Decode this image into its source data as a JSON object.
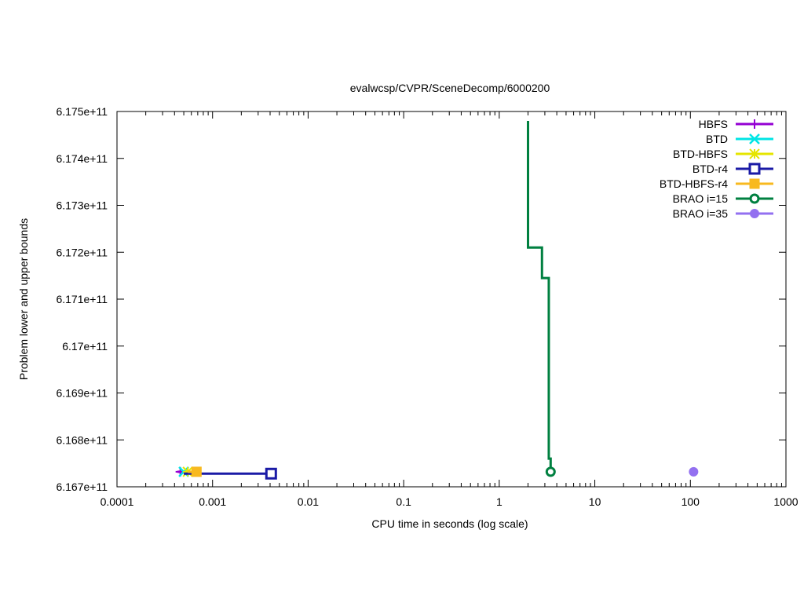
{
  "chart_data": {
    "type": "line",
    "title": "evalwcsp/CVPR/SceneDecomp/6000200",
    "xlabel": "CPU time in seconds (log scale)",
    "ylabel": "Problem lower and upper bounds",
    "x_scale": "log",
    "xlim": [
      0.0001,
      1000
    ],
    "ylim": [
      616700000000,
      617500000000
    ],
    "x_ticks": [
      {
        "value": 0.0001,
        "label": "0.0001"
      },
      {
        "value": 0.001,
        "label": "0.001"
      },
      {
        "value": 0.01,
        "label": "0.01"
      },
      {
        "value": 0.1,
        "label": "0.1"
      },
      {
        "value": 1,
        "label": "1"
      },
      {
        "value": 10,
        "label": "10"
      },
      {
        "value": 100,
        "label": "100"
      },
      {
        "value": 1000,
        "label": "1000"
      }
    ],
    "y_ticks": [
      {
        "value": 616700000000,
        "label": "6.167e+11"
      },
      {
        "value": 616800000000,
        "label": "6.168e+11"
      },
      {
        "value": 616900000000,
        "label": "6.169e+11"
      },
      {
        "value": 617000000000,
        "label": "6.17e+11"
      },
      {
        "value": 617100000000,
        "label": "6.171e+11"
      },
      {
        "value": 617200000000,
        "label": "6.172e+11"
      },
      {
        "value": 617300000000,
        "label": "6.173e+11"
      },
      {
        "value": 617400000000,
        "label": "6.174e+11"
      },
      {
        "value": 617500000000,
        "label": "6.175e+11"
      }
    ],
    "legend_position": "top-right",
    "grid": false,
    "series": [
      {
        "name": "HBFS",
        "color": "#9400d3",
        "marker": "plus",
        "points": [
          [
            0.00043,
            616732000000
          ],
          [
            0.00046,
            616732000000
          ]
        ]
      },
      {
        "name": "BTD",
        "color": "#00e5e5",
        "marker": "cross",
        "points": [
          [
            0.00048,
            616732000000
          ],
          [
            0.0005,
            616732000000
          ]
        ]
      },
      {
        "name": "BTD-HBFS",
        "color": "#e5e500",
        "marker": "star",
        "points": [
          [
            0.00053,
            616732000000
          ],
          [
            0.00055,
            616732000000
          ]
        ]
      },
      {
        "name": "BTD-r4",
        "color": "#1a1aa6",
        "marker": "open-square",
        "points": [
          [
            0.0005,
            616728000000
          ],
          [
            0.0041,
            616728000000
          ]
        ]
      },
      {
        "name": "BTD-HBFS-r4",
        "color": "#f8b91f",
        "marker": "filled-square",
        "points": [
          [
            0.00055,
            616732000000
          ],
          [
            0.00068,
            616732000000
          ]
        ]
      },
      {
        "name": "BRAO i=15",
        "color": "#008040",
        "marker": "open-circle",
        "points": [
          [
            2.0,
            617480000000
          ],
          [
            2.0,
            617210000000
          ],
          [
            2.8,
            617210000000
          ],
          [
            2.8,
            617145000000
          ],
          [
            3.3,
            617145000000
          ],
          [
            3.3,
            616760000000
          ],
          [
            3.45,
            616760000000
          ],
          [
            3.45,
            616732000000
          ]
        ]
      },
      {
        "name": "BRAO i=35",
        "color": "#9370f0",
        "marker": "filled-circle",
        "points": [
          [
            108,
            616732000000
          ]
        ]
      }
    ]
  }
}
